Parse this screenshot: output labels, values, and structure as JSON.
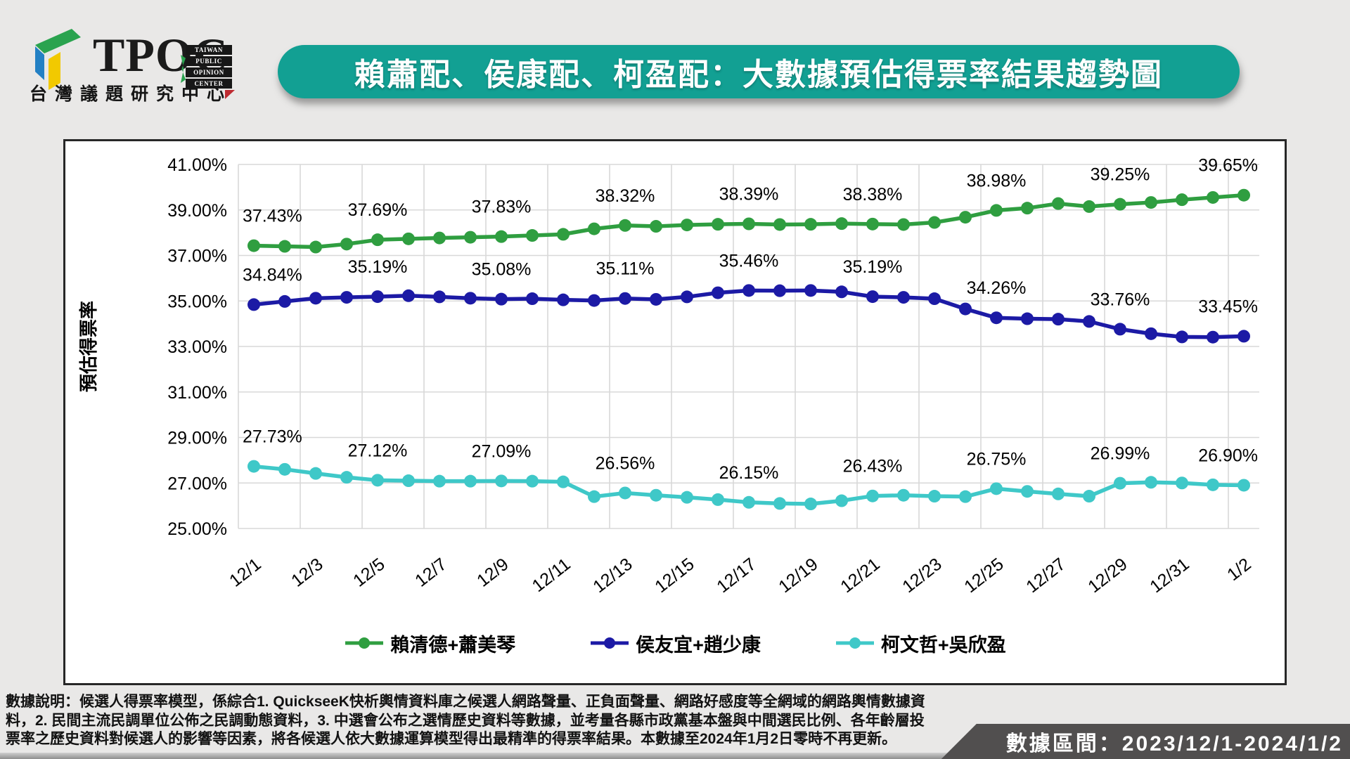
{
  "logo": {
    "brand": "TPOC",
    "brand_words": [
      "TAIWAN",
      "PUBLIC",
      "OPINION",
      "CENTER"
    ],
    "org_name_zh": "台灣議題研究中心",
    "colors": {
      "green": "#2aa34f",
      "blue": "#2380c4",
      "yellow": "#f2c900",
      "red": "#be2b31"
    }
  },
  "banner": {
    "title": "賴蕭配、侯康配、柯盈配：大數據預估得票率結果趨勢圖",
    "bg": "#12a093"
  },
  "chart_data": {
    "type": "line",
    "title": "",
    "xlabel": "",
    "ylabel": "預估得票率",
    "ylim": [
      25,
      41
    ],
    "grid": true,
    "legend_position": "bottom",
    "ytick_labels": [
      "41.00%",
      "39.00%",
      "37.00%",
      "35.00%",
      "33.00%",
      "31.00%",
      "29.00%",
      "27.00%",
      "25.00%"
    ],
    "xtick_labels": [
      "12/1",
      "12/3",
      "12/5",
      "12/7",
      "12/9",
      "12/11",
      "12/13",
      "12/15",
      "12/17",
      "12/19",
      "12/21",
      "12/23",
      "12/25",
      "12/27",
      "12/29",
      "12/31",
      "1/2"
    ],
    "days": [
      "12/1",
      "12/2",
      "12/3",
      "12/4",
      "12/5",
      "12/6",
      "12/7",
      "12/8",
      "12/9",
      "12/10",
      "12/11",
      "12/12",
      "12/13",
      "12/14",
      "12/15",
      "12/16",
      "12/17",
      "12/18",
      "12/19",
      "12/20",
      "12/21",
      "12/22",
      "12/23",
      "12/24",
      "12/25",
      "12/26",
      "12/27",
      "12/28",
      "12/29",
      "12/30",
      "12/31",
      "1/1",
      "1/2"
    ],
    "callout_day_indices": [
      0,
      4,
      8,
      12,
      16,
      20,
      24,
      28,
      32
    ],
    "series": [
      {
        "name": "賴清德+蕭美琴",
        "color": "#2f9e40",
        "callouts": [
          "37.43%",
          "37.69%",
          "37.83%",
          "38.32%",
          "38.39%",
          "38.38%",
          "38.98%",
          "39.25%",
          "39.65%"
        ],
        "values": [
          37.43,
          37.4,
          37.37,
          37.5,
          37.69,
          37.73,
          37.77,
          37.8,
          37.83,
          37.88,
          37.93,
          38.17,
          38.32,
          38.28,
          38.34,
          38.37,
          38.39,
          38.36,
          38.37,
          38.4,
          38.38,
          38.36,
          38.45,
          38.68,
          38.98,
          39.08,
          39.28,
          39.15,
          39.25,
          39.33,
          39.45,
          39.55,
          39.65
        ]
      },
      {
        "name": "侯友宜+趙少康",
        "color": "#1c1aa5",
        "callouts": [
          "34.84%",
          "35.19%",
          "35.08%",
          "35.11%",
          "35.46%",
          "35.19%",
          "34.26%",
          "33.76%",
          "33.45%"
        ],
        "values": [
          34.84,
          34.98,
          35.12,
          35.16,
          35.19,
          35.23,
          35.18,
          35.12,
          35.08,
          35.1,
          35.05,
          35.02,
          35.11,
          35.07,
          35.18,
          35.36,
          35.46,
          35.45,
          35.46,
          35.4,
          35.19,
          35.16,
          35.1,
          34.65,
          34.26,
          34.22,
          34.2,
          34.1,
          33.76,
          33.56,
          33.42,
          33.41,
          33.45
        ]
      },
      {
        "name": "柯文哲+吳欣盈",
        "color": "#3fc8c8",
        "callouts": [
          "27.73%",
          "27.12%",
          "27.09%",
          "26.56%",
          "26.15%",
          "26.43%",
          "26.75%",
          "26.99%",
          "26.90%"
        ],
        "values": [
          27.73,
          27.6,
          27.42,
          27.25,
          27.12,
          27.1,
          27.08,
          27.08,
          27.09,
          27.08,
          27.05,
          26.4,
          26.56,
          26.46,
          26.37,
          26.27,
          26.15,
          26.1,
          26.08,
          26.22,
          26.43,
          26.46,
          26.42,
          26.4,
          26.75,
          26.63,
          26.52,
          26.42,
          26.99,
          27.03,
          27.0,
          26.92,
          26.9
        ]
      }
    ]
  },
  "footer": {
    "lines": [
      "數據說明：候選人得票率模型，係綜合1. QuickseeK快析輿情資料庫之候選人網路聲量、正負面聲量、網路好感度等全網域的網路輿情數據資",
      "料，2. 民間主流民調單位公佈之民調動態資料，3. 中選會公布之選情歷史資料等數據，並考量各縣市政黨基本盤與中間選民比例、各年齡層投",
      "票率之歷史資料對候選人的影響等因素，將各候選人依大數據運算模型得出最精準的得票率結果。本數據至2024年1月2日零時不再更新。"
    ]
  },
  "badge": {
    "text": "數據區間：2023/12/1-2024/1/2",
    "bg": "#514f4f"
  }
}
